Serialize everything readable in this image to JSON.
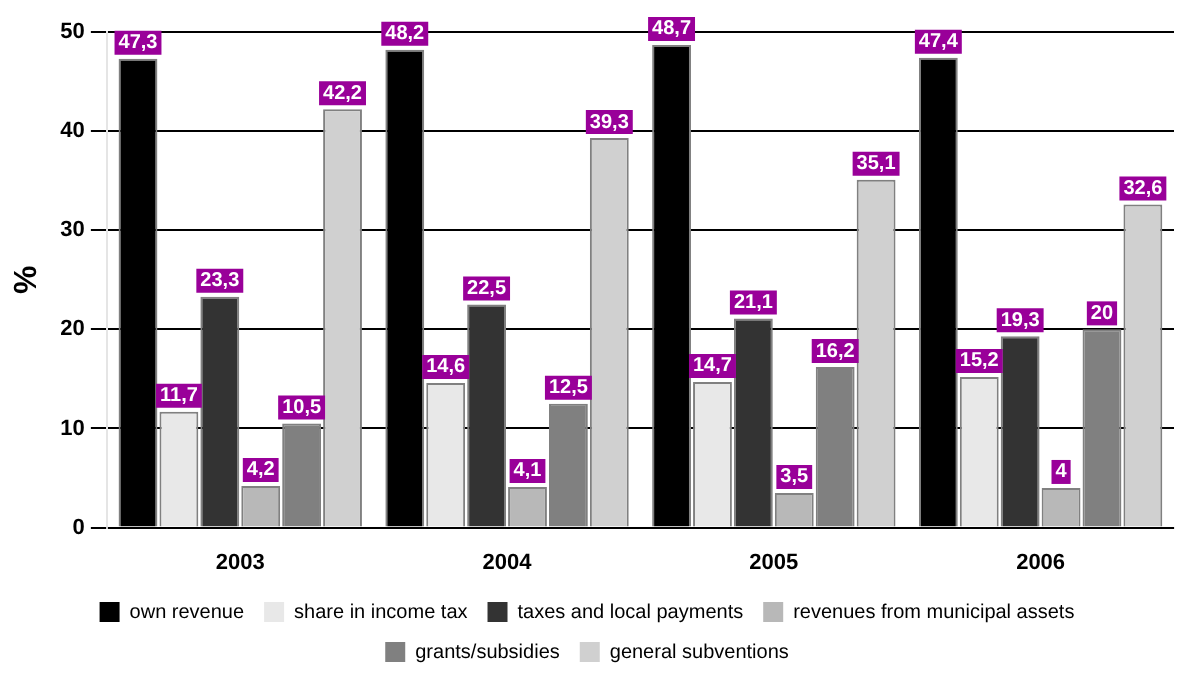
{
  "chart_data": {
    "type": "bar",
    "ylabel": "%",
    "categories": [
      "2003",
      "2004",
      "2005",
      "2006"
    ],
    "series": [
      {
        "name": "own revenue",
        "color": "#000000",
        "values": [
          47.3,
          48.2,
          48.7,
          47.4
        ],
        "value_labels": [
          "47,3",
          "48,2",
          "48,7",
          "47,4"
        ]
      },
      {
        "name": "share in income tax",
        "color": "#e8e8e8",
        "values": [
          11.7,
          14.6,
          14.7,
          15.2
        ],
        "value_labels": [
          "11,7",
          "14,6",
          "14,7",
          "15,2"
        ]
      },
      {
        "name": "taxes and local payments",
        "color": "#333333",
        "values": [
          23.3,
          22.5,
          21.1,
          19.3
        ],
        "value_labels": [
          "23,3",
          "22,5",
          "21,1",
          "19,3"
        ]
      },
      {
        "name": "revenues from municipal assets",
        "color": "#b8b8b8",
        "values": [
          4.2,
          4.1,
          3.5,
          4
        ],
        "value_labels": [
          "4,2",
          "4,1",
          "3,5",
          "4"
        ]
      },
      {
        "name": "grants/subsidies",
        "color": "#808080",
        "values": [
          10.5,
          12.5,
          16.2,
          20
        ],
        "value_labels": [
          "10,5",
          "12,5",
          "16,2",
          "20"
        ]
      },
      {
        "name": "general subventions",
        "color": "#d0d0d0",
        "values": [
          42.2,
          39.3,
          35.1,
          32.6
        ],
        "value_labels": [
          "42,2",
          "39,3",
          "35,1",
          "32,6"
        ]
      }
    ],
    "ylim": [
      0,
      50
    ],
    "yticks": [
      0,
      10,
      20,
      30,
      40,
      50
    ],
    "grid": "y",
    "legend": "bottom"
  }
}
